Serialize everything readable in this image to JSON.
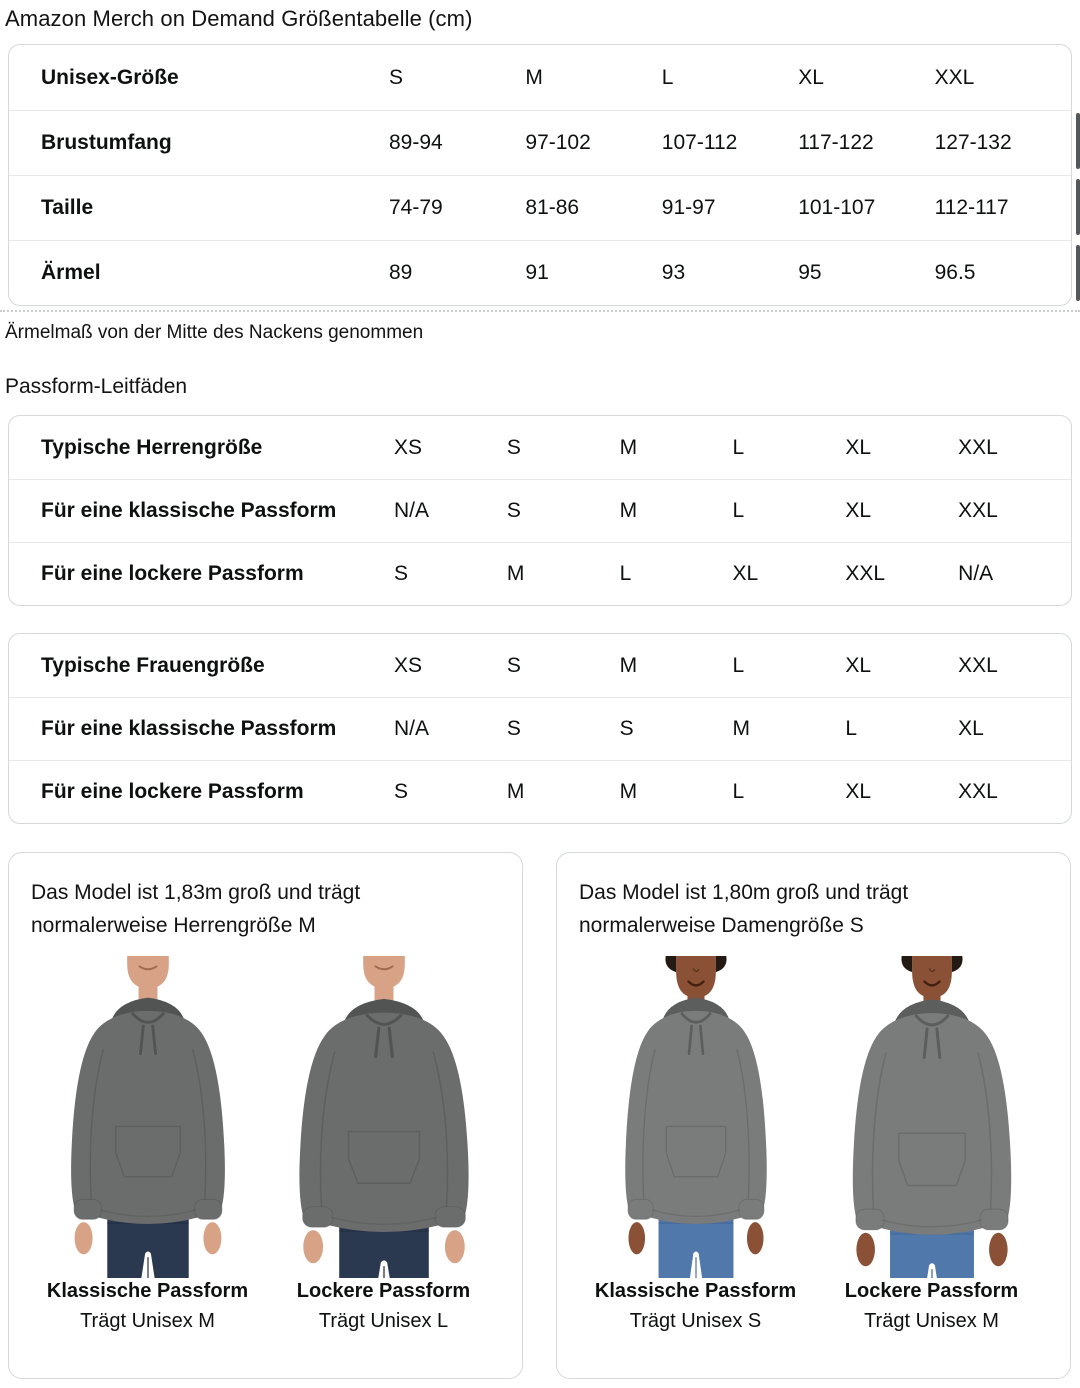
{
  "page_title": "Amazon Merch on Demand Größentabelle (cm)",
  "size_table": {
    "rows": [
      {
        "label": "Unisex-Größe",
        "values": [
          "S",
          "M",
          "L",
          "XL",
          "XXL"
        ]
      },
      {
        "label": "Brustumfang",
        "values": [
          "89-94",
          "97-102",
          "107-112",
          "117-122",
          "127-132"
        ]
      },
      {
        "label": "Taille",
        "values": [
          "74-79",
          "81-86",
          "91-97",
          "101-107",
          "112-117"
        ]
      },
      {
        "label": "Ärmel",
        "values": [
          "89",
          "91",
          "93",
          "95",
          "96.5"
        ]
      }
    ]
  },
  "sleeve_note": "Ärmelmaß von der Mitte des Nackens genommen",
  "fit_heading": "Passform-Leitfäden",
  "fit_tables": [
    {
      "rows": [
        {
          "label": "Typische Herrengröße",
          "values": [
            "XS",
            "S",
            "M",
            "L",
            "XL",
            "XXL"
          ]
        },
        {
          "label": "Für eine klassische Passform",
          "values": [
            "N/A",
            "S",
            "M",
            "L",
            "XL",
            "XXL"
          ]
        },
        {
          "label": "Für eine lockere Passform",
          "values": [
            "S",
            "M",
            "L",
            "XL",
            "XXL",
            "N/A"
          ]
        }
      ]
    },
    {
      "rows": [
        {
          "label": "Typische Frauengröße",
          "values": [
            "XS",
            "S",
            "M",
            "L",
            "XL",
            "XXL"
          ]
        },
        {
          "label": "Für eine klassische Passform",
          "values": [
            "N/A",
            "S",
            "S",
            "M",
            "L",
            "XL"
          ]
        },
        {
          "label": "Für eine lockere Passform",
          "values": [
            "S",
            "M",
            "M",
            "L",
            "XL",
            "XXL"
          ]
        }
      ]
    }
  ],
  "model_cards": [
    {
      "description": "Das Model ist 1,83m groß und trägt normalerweise Herrengröße M",
      "figures": [
        {
          "fit": "Klassische Passform",
          "size": "Trägt Unisex M"
        },
        {
          "fit": "Lockere Passform",
          "size": "Trägt Unisex L"
        }
      ]
    },
    {
      "description": "Das Model ist 1,80m groß und trägt normalerweise Damengröße S",
      "figures": [
        {
          "fit": "Klassische Passform",
          "size": "Trägt Unisex S"
        },
        {
          "fit": "Lockere Passform",
          "size": "Trägt Unisex M"
        }
      ]
    }
  ],
  "colors": {
    "text": "#0f1111",
    "table_border": "#d5d9d9",
    "row_divider": "#e7e8e8",
    "hoodie_gray_men": "#6b6c6c",
    "hoodie_gray_men_dark": "#525454",
    "hoodie_gray_women": "#7a7b7b",
    "hoodie_gray_women_dark": "#5c5d5d",
    "jeans_men": "#2b3950",
    "jeans_men_dark": "#1a2436",
    "jeans_women": "#5078aa",
    "jeans_women_dark": "#3a5a85",
    "skin_men": "#d8a287",
    "skin_men_shade": "#a06a4c",
    "skin_women": "#8a5136",
    "skin_women_shade": "#5e3категория"
  }
}
